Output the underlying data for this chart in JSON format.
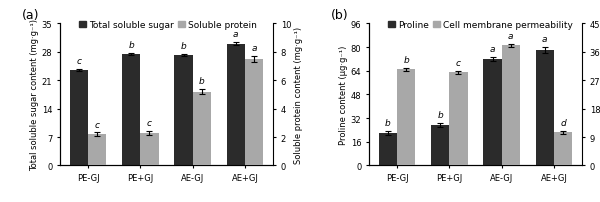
{
  "categories": [
    "PE-GJ",
    "PE+GJ",
    "AE-GJ",
    "AE+GJ"
  ],
  "panel_a": {
    "title": "(a)",
    "sugar_values": [
      23.5,
      27.5,
      27.2,
      30.0
    ],
    "sugar_errors": [
      0.3,
      0.3,
      0.3,
      0.4
    ],
    "sugar_labels": [
      "c",
      "b",
      "b",
      "a"
    ],
    "protein_values": [
      2.2,
      2.3,
      5.2,
      7.5
    ],
    "protein_errors": [
      0.15,
      0.15,
      0.2,
      0.2
    ],
    "protein_labels": [
      "c",
      "c",
      "b",
      "a"
    ],
    "ylabel_left": "Total soluble sugar content (mg·g⁻¹)",
    "ylabel_right": "Soluble protein content (mg·g⁻¹)",
    "ylim_left": [
      0,
      35
    ],
    "ylim_right": [
      0,
      10
    ],
    "yticks_left": [
      0,
      7,
      14,
      21,
      28,
      35
    ],
    "yticks_right": [
      0,
      2,
      4,
      6,
      8,
      10
    ],
    "legend_labels": [
      "Total soluble sugar",
      "Soluble protein"
    ]
  },
  "panel_b": {
    "title": "(b)",
    "proline_values": [
      22.0,
      27.5,
      72.0,
      78.0
    ],
    "proline_errors": [
      1.5,
      1.2,
      1.5,
      2.0
    ],
    "proline_labels": [
      "b",
      "b",
      "a",
      "a"
    ],
    "membrane_values": [
      30.5,
      29.5,
      38.0,
      10.5
    ],
    "membrane_errors": [
      0.5,
      0.4,
      0.5,
      0.5
    ],
    "membrane_labels": [
      "b",
      "c",
      "a",
      "d"
    ],
    "ylabel_left": "Proline content (μg·g⁻¹)",
    "ylabel_right": "Cell membrane permeability (%)",
    "ylim_left": [
      0,
      96
    ],
    "ylim_right": [
      0,
      45
    ],
    "yticks_left": [
      0,
      16,
      32,
      48,
      64,
      80,
      96
    ],
    "yticks_right": [
      0,
      9,
      18,
      27,
      36,
      45
    ],
    "legend_labels": [
      "Proline",
      "Cell membrane permeability"
    ]
  },
  "dark_color": "#2b2b2b",
  "light_color": "#a8a8a8",
  "bar_width": 0.35,
  "label_fontsize": 6.0,
  "tick_fontsize": 6.0,
  "legend_fontsize": 6.5,
  "title_fontsize": 9,
  "annot_fontsize": 6.5
}
